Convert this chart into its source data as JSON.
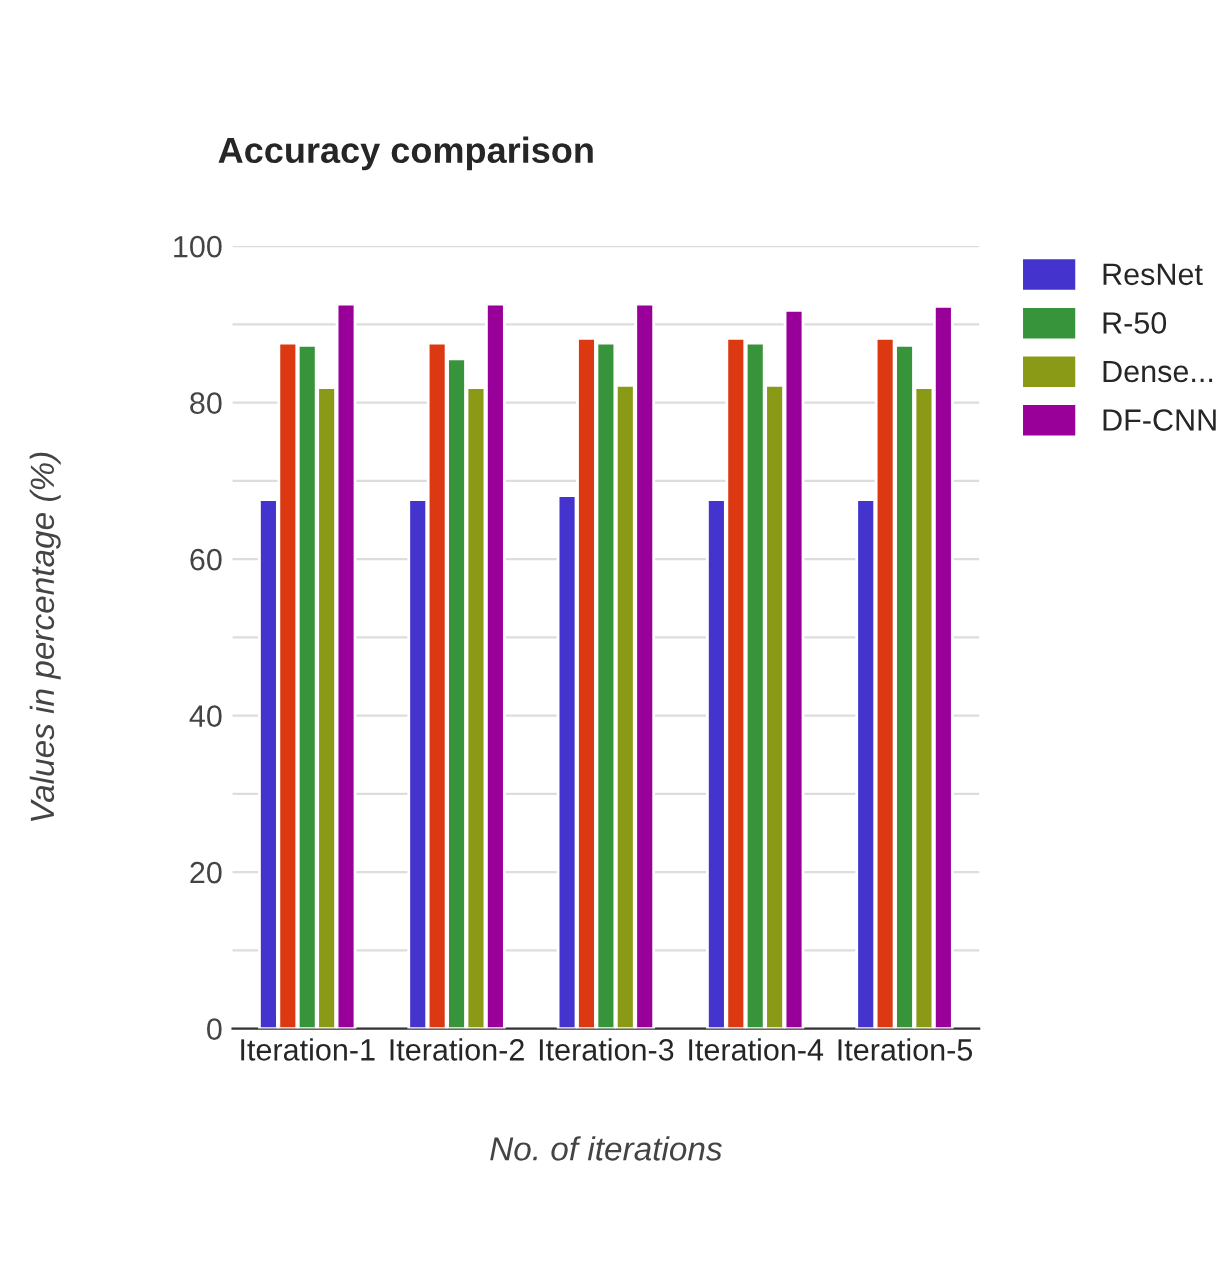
{
  "chart_data": {
    "type": "bar",
    "title": "Accuracy comparison",
    "xlabel": "No. of iterations",
    "ylabel": "Values in percentage (%)",
    "categories": [
      "Iteration-1",
      "Iteration-2",
      "Iteration-3",
      "Iteration-4",
      "Iteration-5"
    ],
    "series": [
      {
        "name": "ResNet",
        "color": "#4433cc",
        "values": [
          67.6,
          67.6,
          68.1,
          67.6,
          67.6
        ]
      },
      {
        "color": "#dc3912",
        "values": [
          87.6,
          87.6,
          88.2,
          88.2,
          88.2
        ]
      },
      {
        "name": "R-50",
        "color": "#38943a",
        "values": [
          87.3,
          85.6,
          87.6,
          87.6,
          87.3
        ]
      },
      {
        "name": "Dense...",
        "color": "#8b9a16",
        "values": [
          81.9,
          81.9,
          82.2,
          82.2,
          81.9
        ]
      },
      {
        "name": "DF-CNN",
        "color": "#990099",
        "values": [
          92.6,
          92.6,
          92.6,
          91.8,
          92.3
        ]
      }
    ],
    "ylim": [
      0,
      100
    ],
    "yticks": [
      0,
      {
        "value": 10,
        "label": null
      },
      20,
      {
        "value": 30,
        "label": null
      },
      40,
      {
        "value": 50,
        "label": null
      },
      60,
      {
        "value": 70,
        "label": null
      },
      80,
      {
        "value": 90,
        "label": null
      },
      100
    ],
    "grid": "y",
    "legend": "right"
  }
}
